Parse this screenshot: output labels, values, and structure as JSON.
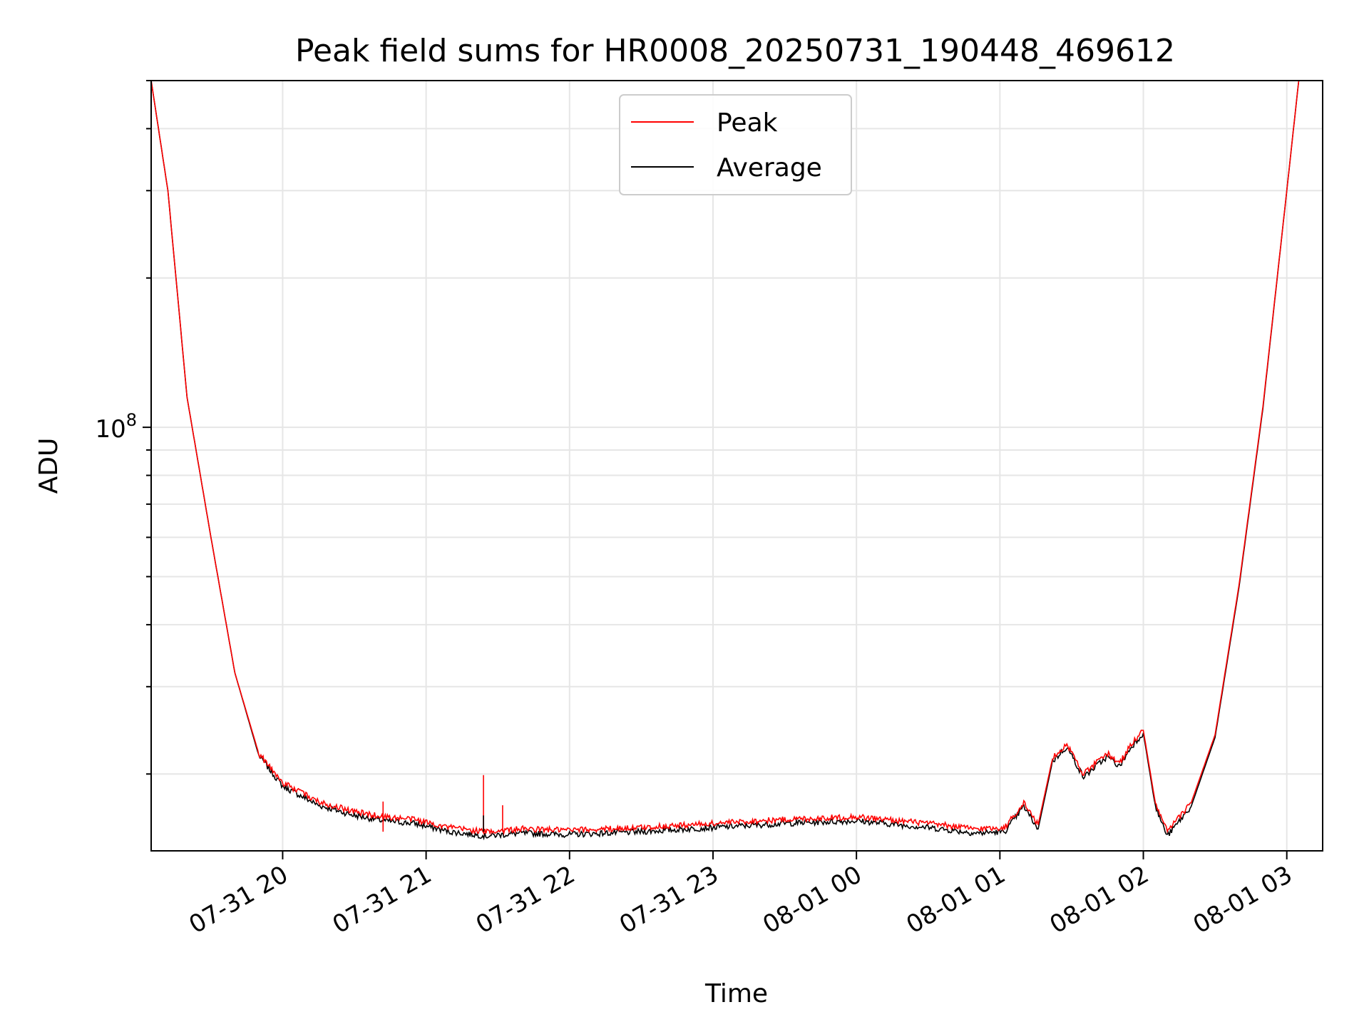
{
  "chart_data": {
    "type": "line",
    "title": "Peak field sums for HR0008_20250731_190448_469612",
    "xlabel": "Time",
    "ylabel": "ADU",
    "yscale": "log",
    "ylim": [
      14000000,
      500000000
    ],
    "xlim": [
      "2025-07-31 19:05",
      "2025-08-01 03:15"
    ],
    "x_ticks": [
      "2025-07-31 20:00",
      "2025-07-31 21:00",
      "2025-07-31 22:00",
      "2025-07-31 23:00",
      "2025-08-01 00:00",
      "2025-08-01 01:00",
      "2025-08-01 02:00",
      "2025-08-01 03:00"
    ],
    "x_tick_labels": [
      "07-31 20",
      "07-31 21",
      "07-31 22",
      "07-31 23",
      "08-01 00",
      "08-01 01",
      "08-01 02",
      "08-01 03"
    ],
    "y_tick_label": {
      "base": "10",
      "exponent": "8"
    },
    "grid": true,
    "legend": "top-center",
    "series": [
      {
        "name": "Peak",
        "color": "#ff0000",
        "x": [
          "2025-07-31 19:05",
          "2025-07-31 19:12",
          "2025-07-31 19:20",
          "2025-07-31 19:30",
          "2025-07-31 19:40",
          "2025-07-31 19:50",
          "2025-07-31 20:00",
          "2025-07-31 20:15",
          "2025-07-31 20:30",
          "2025-07-31 20:42",
          "2025-07-31 20:55",
          "2025-07-31 21:10",
          "2025-07-31 21:25",
          "2025-07-31 21:40",
          "2025-07-31 22:00",
          "2025-07-31 22:30",
          "2025-07-31 23:00",
          "2025-07-31 23:30",
          "2025-08-01 00:00",
          "2025-08-01 00:30",
          "2025-08-01 00:50",
          "2025-08-01 01:02",
          "2025-08-01 01:10",
          "2025-08-01 01:16",
          "2025-08-01 01:22",
          "2025-08-01 01:28",
          "2025-08-01 01:35",
          "2025-08-01 01:40",
          "2025-08-01 01:45",
          "2025-08-01 01:50",
          "2025-08-01 01:55",
          "2025-08-01 02:00",
          "2025-08-01 02:05",
          "2025-08-01 02:10",
          "2025-08-01 02:20",
          "2025-08-01 02:30",
          "2025-08-01 02:40",
          "2025-08-01 02:50",
          "2025-08-01 03:00",
          "2025-08-01 03:05"
        ],
        "y": [
          500000000,
          300000000,
          115000000,
          60000000,
          32000000,
          22000000,
          19200000,
          17600000,
          16800000,
          16400000,
          16200000,
          15600000,
          15300000,
          15500000,
          15400000,
          15600000,
          15900000,
          16200000,
          16400000,
          15900000,
          15500000,
          15600000,
          17500000,
          15800000,
          21500000,
          23000000,
          20000000,
          21000000,
          22000000,
          21000000,
          23000000,
          24500000,
          17500000,
          15300000,
          17500000,
          24000000,
          48000000,
          110000000,
          300000000,
          500000000
        ]
      },
      {
        "name": "Average",
        "color": "#000000",
        "x": [
          "2025-07-31 19:05",
          "2025-07-31 19:12",
          "2025-07-31 19:20",
          "2025-07-31 19:30",
          "2025-07-31 19:40",
          "2025-07-31 19:50",
          "2025-07-31 20:00",
          "2025-07-31 20:15",
          "2025-07-31 20:30",
          "2025-07-31 20:42",
          "2025-07-31 20:55",
          "2025-07-31 21:10",
          "2025-07-31 21:25",
          "2025-07-31 21:40",
          "2025-07-31 22:00",
          "2025-07-31 22:30",
          "2025-07-31 23:00",
          "2025-07-31 23:30",
          "2025-08-01 00:00",
          "2025-08-01 00:30",
          "2025-08-01 00:50",
          "2025-08-01 01:02",
          "2025-08-01 01:10",
          "2025-08-01 01:16",
          "2025-08-01 01:22",
          "2025-08-01 01:28",
          "2025-08-01 01:35",
          "2025-08-01 01:40",
          "2025-08-01 01:45",
          "2025-08-01 01:50",
          "2025-08-01 01:55",
          "2025-08-01 02:00",
          "2025-08-01 02:05",
          "2025-08-01 02:10",
          "2025-08-01 02:20",
          "2025-08-01 02:30",
          "2025-08-01 02:40",
          "2025-08-01 02:50",
          "2025-08-01 03:00",
          "2025-08-01 03:05"
        ],
        "y": [
          500000000,
          300000000,
          115000000,
          60000000,
          32000000,
          21800000,
          18900000,
          17300000,
          16500000,
          16100000,
          15900000,
          15300000,
          15000000,
          15200000,
          15100000,
          15300000,
          15600000,
          15900000,
          16100000,
          15600000,
          15200000,
          15300000,
          17200000,
          15500000,
          21200000,
          22700000,
          19700000,
          20700000,
          21700000,
          20700000,
          22700000,
          24200000,
          17200000,
          15000000,
          17200000,
          23700000,
          47500000,
          109000000,
          300000000,
          500000000
        ]
      }
    ],
    "spikes": [
      {
        "series": "Peak",
        "x": "2025-07-31 20:42",
        "y": 17600000
      },
      {
        "series": "Peak",
        "x": "2025-07-31 21:24",
        "y": 19900000
      },
      {
        "series": "Peak",
        "x": "2025-07-31 21:32",
        "y": 17300000
      },
      {
        "series": "Average",
        "x": "2025-07-31 21:24",
        "y": 16500000
      }
    ]
  }
}
